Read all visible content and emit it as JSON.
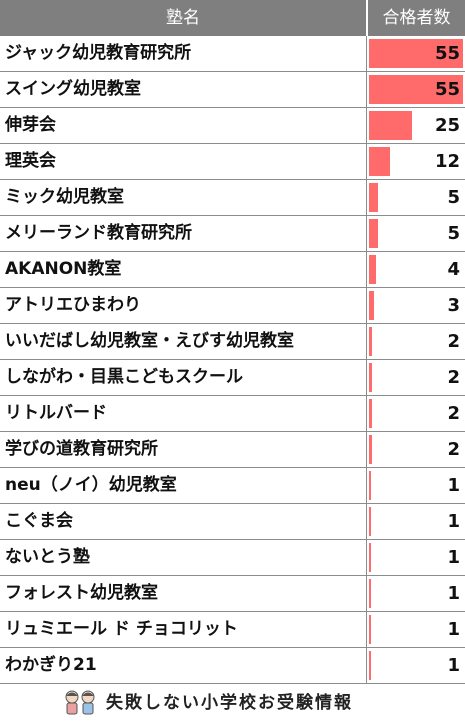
{
  "header": {
    "school_label": "塾名",
    "count_label": "合格者数"
  },
  "colors": {
    "bar": "#ff6a6a",
    "header_bg": "#7f7f7f"
  },
  "chart_data": {
    "type": "bar",
    "categories": [
      "ジャック幼児教育研究所",
      "スイング幼児教室",
      "伸芽会",
      "理英会",
      "ミック幼児教室",
      "メリーランド教育研究所",
      "AKANON教室",
      "アトリエひまわり",
      "いいだばし幼児教室・えびす幼児教室",
      "しながわ・目黒こどもスクール",
      "リトルバード",
      "学びの道教育研究所",
      "neu（ノイ）幼児教室",
      "こぐま会",
      "ないとう塾",
      "フォレスト幼児教室",
      "リュミエール ド チョコリット",
      "わかぎり21"
    ],
    "values": [
      55,
      55,
      25,
      12,
      5,
      5,
      4,
      3,
      2,
      2,
      2,
      2,
      1,
      1,
      1,
      1,
      1,
      1
    ],
    "xlabel": "塾名",
    "ylabel": "合格者数"
  },
  "footer": {
    "text": "失敗しない小学校お受験情報",
    "logo_icon": "children-logo-icon"
  }
}
